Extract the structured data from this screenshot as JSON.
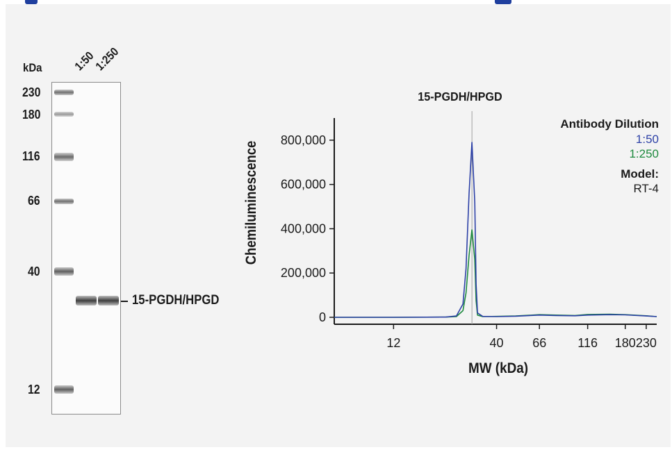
{
  "blot": {
    "kda_label": "kDa",
    "lanes": [
      "1:50",
      "1:250"
    ],
    "ladder": [
      "230",
      "180",
      "116",
      "66",
      "40",
      "12"
    ],
    "band_label": "15-PGDH/HPGD"
  },
  "chart_data": {
    "type": "line",
    "title": "15-PGDH/HPGD",
    "xlabel": "MW (kDa)",
    "ylabel": "Chemiluminescence",
    "x_scale": "log",
    "x_ticks": [
      12,
      40,
      66,
      116,
      180,
      230
    ],
    "x_tick_labels": [
      "12",
      "40",
      "66",
      "116",
      "180",
      "230"
    ],
    "y_ticks": [
      0,
      200000,
      400000,
      600000,
      800000
    ],
    "y_tick_labels": [
      "0",
      "200,000",
      "400,000",
      "600,000",
      "800,000"
    ],
    "ylim": [
      0,
      900000
    ],
    "xlim": [
      6,
      260
    ],
    "marker_kda": 30,
    "legend": {
      "title": "Antibody Dilution",
      "entries": [
        {
          "label": "1:50",
          "color": "#2b3fa6"
        },
        {
          "label": "1:250",
          "color": "#1e8a3e"
        }
      ],
      "model_title": "Model:",
      "model_value": "RT-4"
    },
    "series": [
      {
        "name": "1:50",
        "color": "#2b3fa6",
        "points": [
          [
            6,
            0
          ],
          [
            12,
            0
          ],
          [
            22,
            1000
          ],
          [
            25,
            6000
          ],
          [
            27,
            60000
          ],
          [
            28,
            220000
          ],
          [
            29,
            560000
          ],
          [
            30,
            790000
          ],
          [
            31,
            520000
          ],
          [
            31.5,
            150000
          ],
          [
            32,
            20000
          ],
          [
            34,
            4000
          ],
          [
            40,
            3000
          ],
          [
            50,
            5000
          ],
          [
            66,
            10000
          ],
          [
            80,
            8000
          ],
          [
            100,
            7000
          ],
          [
            116,
            10000
          ],
          [
            150,
            12000
          ],
          [
            180,
            11000
          ],
          [
            230,
            6000
          ],
          [
            260,
            3000
          ]
        ]
      },
      {
        "name": "1:250",
        "color": "#1e8a3e",
        "points": [
          [
            6,
            0
          ],
          [
            12,
            0
          ],
          [
            22,
            800
          ],
          [
            25,
            3000
          ],
          [
            27,
            30000
          ],
          [
            28,
            110000
          ],
          [
            29,
            280000
          ],
          [
            30,
            395000
          ],
          [
            31,
            260000
          ],
          [
            31.5,
            75000
          ],
          [
            32,
            10000
          ],
          [
            34,
            3000
          ],
          [
            40,
            4000
          ],
          [
            50,
            6000
          ],
          [
            66,
            12000
          ],
          [
            80,
            10000
          ],
          [
            100,
            8000
          ],
          [
            116,
            13000
          ],
          [
            150,
            14000
          ],
          [
            180,
            12000
          ],
          [
            230,
            7000
          ],
          [
            260,
            3000
          ]
        ]
      }
    ]
  },
  "colors": {
    "panel_bg": "#f3f3f3",
    "header_blue": "#1f3f9e",
    "text": "#1a1a1a",
    "marker_line": "#a0a0a0"
  }
}
